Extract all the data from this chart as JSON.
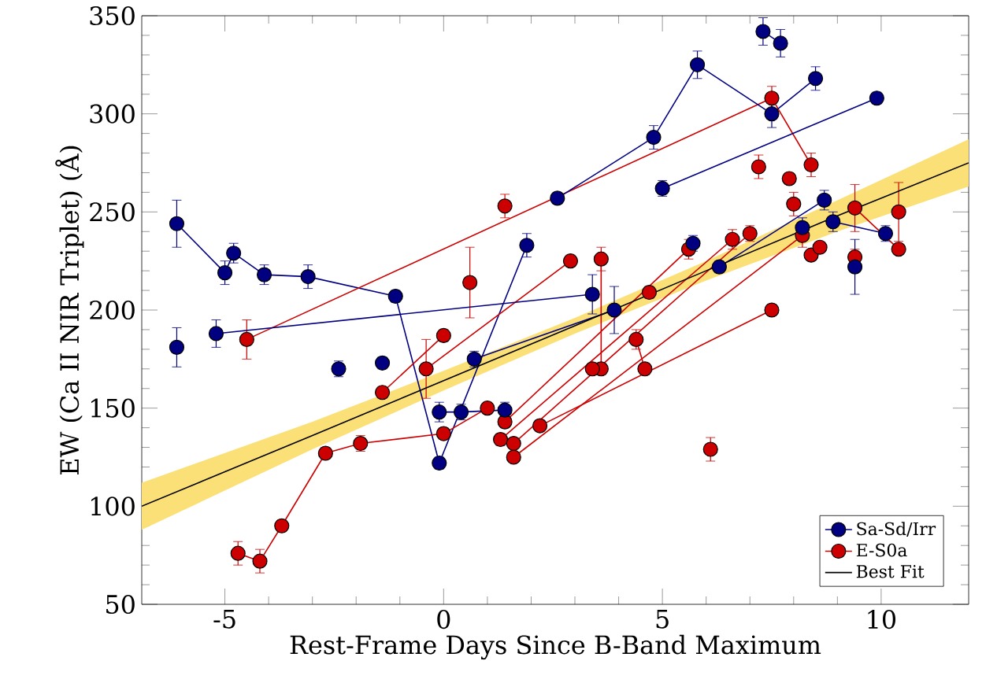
{
  "chart_data": {
    "type": "line",
    "xlabel": "Rest-Frame Days Since B-Band Maximum",
    "ylabel": "EW (Ca II NIR Triplet) (Å)",
    "xlim": [
      -6.9,
      12
    ],
    "ylim": [
      50,
      350
    ],
    "xticks": [
      -5,
      0,
      5,
      10
    ],
    "yticks": [
      50,
      100,
      150,
      200,
      250,
      300,
      350
    ],
    "legend": "bottom right",
    "grid": false,
    "marker": "circle",
    "series": [
      {
        "name": "Sa-Sd/Irr",
        "color": "#000080",
        "x": [
          -6.1,
          -5.0,
          -4.8,
          -4.1,
          -3.1,
          -1.1,
          -0.1,
          1.9
        ],
        "values": [
          244,
          219,
          229,
          218,
          217,
          207,
          122,
          233
        ],
        "errors": [
          12,
          6,
          5,
          5,
          6,
          3,
          3,
          6
        ]
      },
      {
        "name": "E-S0a",
        "color": "#cc0000",
        "x": [
          -4.7,
          -4.2,
          -3.7,
          -2.7,
          -1.9,
          0.0,
          1.0
        ],
        "values": [
          76,
          72,
          90,
          127,
          132,
          137,
          150
        ],
        "errors": [
          6,
          6,
          3,
          3,
          4,
          3,
          3
        ]
      },
      {
        "color": "#cc0000",
        "x": [
          -4.5,
          7.5,
          8.4
        ],
        "values": [
          185,
          308,
          274
        ],
        "errors": [
          10,
          6,
          6
        ]
      },
      {
        "color": "#cc0000",
        "x": [
          -1.4,
          0.0
        ],
        "values": [
          158,
          187
        ],
        "errors": [
          3,
          3
        ]
      },
      {
        "color": "#cc0000",
        "x": [
          -0.4,
          2.9
        ],
        "values": [
          170,
          225
        ],
        "errors": [
          15,
          3
        ]
      },
      {
        "color": "#cc0000",
        "x": [
          1.4,
          5.6
        ],
        "values": [
          143,
          231
        ],
        "errors": [
          3,
          5
        ]
      },
      {
        "color": "#cc0000",
        "x": [
          1.3,
          6.6
        ],
        "values": [
          134,
          236
        ],
        "errors": [
          3,
          5
        ]
      },
      {
        "color": "#cc0000",
        "x": [
          1.6,
          7.0
        ],
        "values": [
          132,
          239
        ],
        "errors": [
          null,
          4
        ]
      },
      {
        "color": "#cc0000",
        "x": [
          1.6,
          8.2
        ],
        "values": [
          125,
          238
        ],
        "errors": [
          null,
          6
        ]
      },
      {
        "color": "#cc0000",
        "x": [
          2.2,
          7.5
        ],
        "values": [
          141,
          200
        ],
        "errors": [
          3,
          3
        ]
      },
      {
        "color": "#cc0000",
        "x": [
          3.6,
          3.6
        ],
        "values": [
          226,
          170
        ],
        "errors": [
          6,
          3
        ]
      },
      {
        "color": "#cc0000",
        "x": [
          4.4,
          4.6
        ],
        "values": [
          185,
          170
        ],
        "errors": [
          5,
          3
        ]
      },
      {
        "color": "#cc0000",
        "x": [
          9.4,
          10.4
        ],
        "values": [
          252,
          231
        ],
        "errors": [
          12,
          null
        ]
      },
      {
        "type": "scatter",
        "color": "#cc0000",
        "x": [
          1.4,
          0.6,
          3.4,
          9.4,
          10.4,
          7.2,
          7.9,
          8.0,
          6.1,
          4.7,
          8.4,
          8.6
        ],
        "values": [
          253,
          214,
          170,
          227,
          250,
          273,
          267,
          254,
          129,
          209,
          228,
          232
        ],
        "errors": [
          6,
          18,
          3,
          4,
          15,
          6,
          3,
          6,
          6,
          3,
          null,
          null
        ]
      },
      {
        "color": "#000080",
        "x": [
          -5.2,
          3.4
        ],
        "values": [
          188,
          208
        ],
        "errors": [
          7,
          10
        ]
      },
      {
        "color": "#000080",
        "x": [
          -0.1,
          0.4,
          1.4
        ],
        "values": [
          148,
          148,
          149
        ],
        "errors": [
          5,
          4,
          4
        ]
      },
      {
        "color": "#000080",
        "x": [
          0.7,
          3.9
        ],
        "values": [
          175,
          200
        ],
        "errors": [
          4,
          12
        ]
      },
      {
        "color": "#000080",
        "x": [
          2.6,
          4.8,
          5.8,
          7.5,
          8.5
        ],
        "values": [
          257,
          288,
          325,
          300,
          318
        ],
        "errors": [
          3,
          6,
          7,
          7,
          6
        ]
      },
      {
        "color": "#000080",
        "x": [
          7.3,
          7.7
        ],
        "values": [
          342,
          336
        ],
        "errors": [
          7,
          7
        ]
      },
      {
        "color": "#000080",
        "x": [
          5.0,
          9.9
        ],
        "values": [
          262,
          308
        ],
        "errors": [
          4,
          3
        ]
      },
      {
        "color": "#000080",
        "x": [
          6.3,
          8.7
        ],
        "values": [
          222,
          256
        ],
        "errors": [
          3,
          5
        ]
      },
      {
        "color": "#000080",
        "x": [
          8.9,
          10.1
        ],
        "values": [
          245,
          239
        ],
        "errors": [
          5,
          4
        ]
      },
      {
        "type": "scatter",
        "color": "#000080",
        "x": [
          -6.1,
          -2.4,
          -1.4,
          8.2,
          9.4,
          5.7
        ],
        "values": [
          181,
          170,
          173,
          242,
          222,
          234
        ],
        "errors": [
          10,
          4,
          3,
          5,
          14,
          4
        ]
      },
      {
        "name": "Best Fit",
        "color": "#000000",
        "marker": "none",
        "x": [
          -6.9,
          -3,
          0,
          3,
          6,
          9,
          12
        ],
        "values": [
          100,
          136,
          164,
          192,
          220,
          248,
          275
        ],
        "lower": [
          88,
          129,
          159,
          188,
          215,
          240,
          263
        ],
        "upper": [
          112,
          143,
          169,
          196,
          225,
          256,
          287
        ]
      }
    ]
  }
}
